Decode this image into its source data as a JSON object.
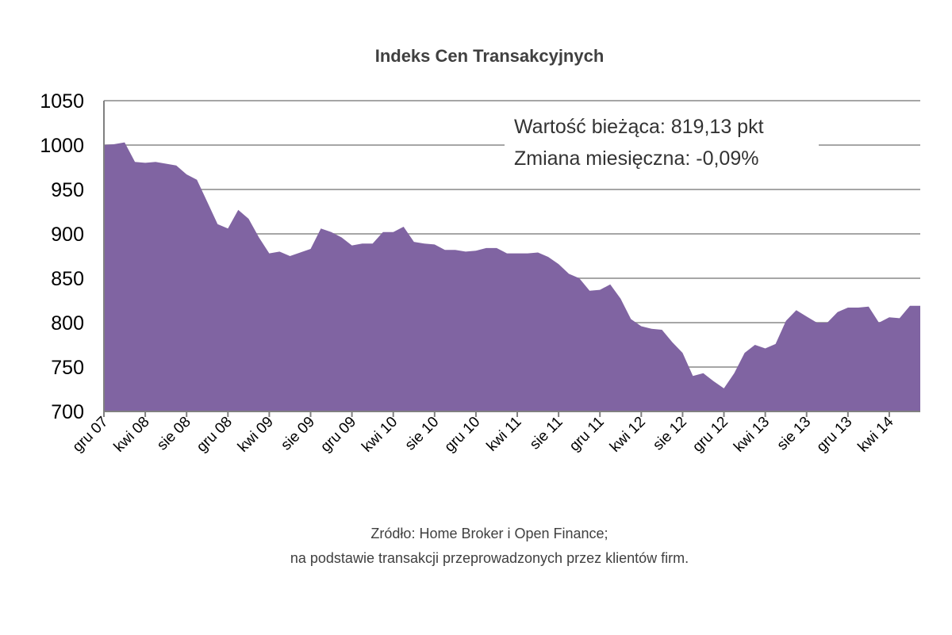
{
  "chart_data": {
    "type": "area",
    "title": "Indeks Cen Transakcyjnych",
    "xlabel": "",
    "ylabel": "",
    "ylim": [
      700,
      1050
    ],
    "yticks": [
      "700",
      "750",
      "800",
      "850",
      "900",
      "950",
      "1000",
      "1050"
    ],
    "grid": true,
    "legend": "none",
    "x_tick_labels": [
      "gru 07",
      "kwi 08",
      "sie 08",
      "gru 08",
      "kwi 09",
      "sie 09",
      "gru 09",
      "kwi 10",
      "sie 10",
      "gru 10",
      "kwi 11",
      "sie 11",
      "gru 11",
      "kwi 12",
      "sie 12",
      "gru 12",
      "kwi 13",
      "sie 13",
      "gru 13",
      "kwi 14"
    ],
    "series": [
      {
        "color": "#8064a2",
        "values": [
          1000,
          1001,
          1003,
          981,
          980,
          981,
          979,
          977,
          967,
          961,
          936,
          911,
          906,
          927,
          917,
          896,
          878,
          880,
          875,
          879,
          883,
          906,
          902,
          896,
          887,
          889,
          889,
          902,
          902,
          908,
          891,
          889,
          888,
          882,
          882,
          880,
          881,
          884,
          884,
          878,
          878,
          878,
          879,
          874,
          866,
          855,
          850,
          836,
          837,
          843,
          827,
          804,
          796,
          793,
          792,
          778,
          766,
          740,
          743,
          734,
          726,
          743,
          766,
          775,
          771,
          776,
          802,
          814,
          807,
          800,
          800,
          812,
          817,
          817,
          818,
          800,
          806,
          805,
          819,
          819
        ]
      }
    ],
    "annotations": [
      "Wartość bieżąca: 819,13 pkt",
      "Zmiana miesięczna: -0,09%"
    ]
  },
  "source": {
    "line1": "Zródło: Home Broker i Open Finance;",
    "line2": "na podstawie transakcji przeprowadzonych przez klientów firm."
  }
}
